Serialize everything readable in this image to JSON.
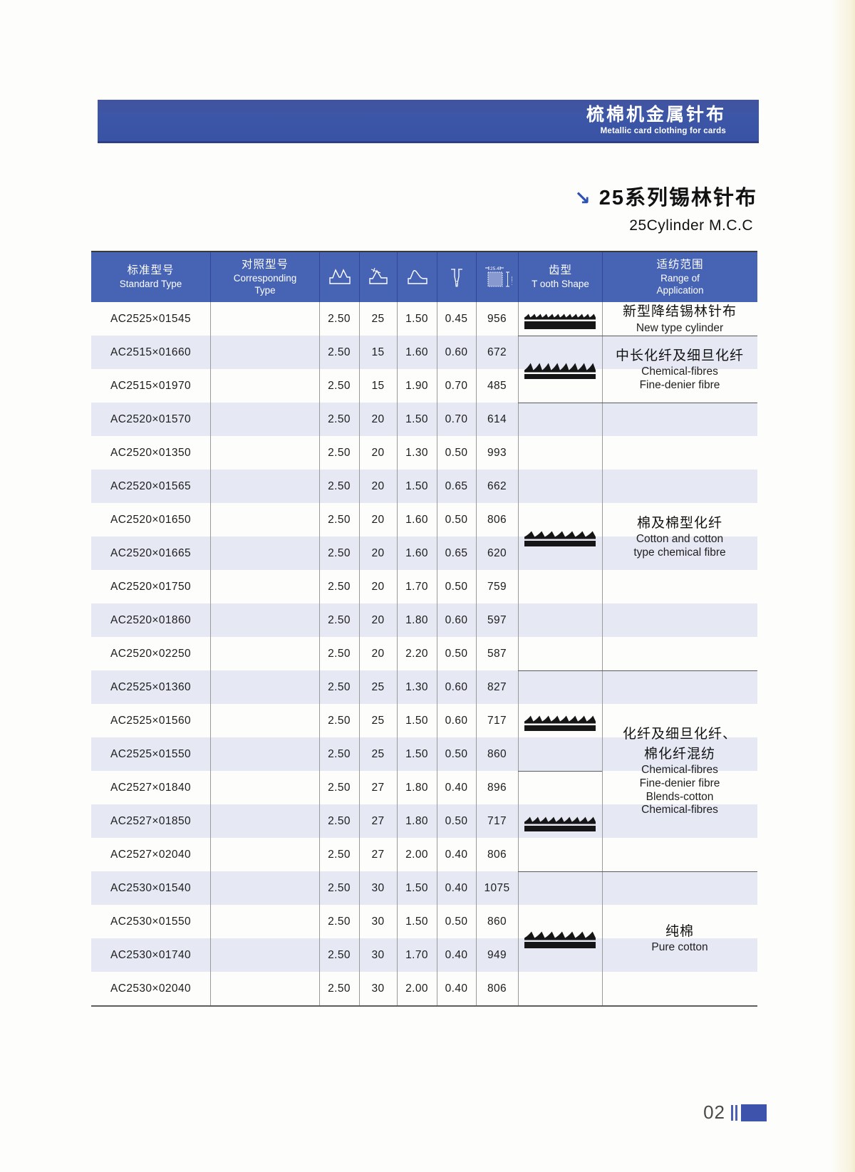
{
  "banner": {
    "title_zh": "梳棉机金属针布",
    "title_en": "Metallic card clothing for cards"
  },
  "section": {
    "arrow": "↘",
    "title_zh": "25系列锡林针布",
    "title_en": "25Cylinder M.C.C"
  },
  "table": {
    "header": {
      "standard": {
        "zh": "标准型号",
        "en": "Standard Type"
      },
      "corresponding": {
        "zh": "对照型号",
        "en1": "Corresponding",
        "en2": "Type"
      },
      "spec_icons": [
        "wire-profile-icon",
        "front-angle-icon",
        "tooth-depth-icon",
        "rib-width-icon",
        "point-density-icon"
      ],
      "density_label": "25.4",
      "tooth_shape": {
        "zh": "齿型",
        "en": "T ooth Shape"
      },
      "application": {
        "zh": "适纺范围",
        "en1": "Range of",
        "en2": "Application"
      }
    },
    "rows": [
      [
        "AC2525×01545",
        "2.50",
        "25",
        "1.50",
        "0.45",
        "956"
      ],
      [
        "AC2515×01660",
        "2.50",
        "15",
        "1.60",
        "0.60",
        "672"
      ],
      [
        "AC2515×01970",
        "2.50",
        "15",
        "1.90",
        "0.70",
        "485"
      ],
      [
        "AC2520×01570",
        "2.50",
        "20",
        "1.50",
        "0.70",
        "614"
      ],
      [
        "AC2520×01350",
        "2.50",
        "20",
        "1.30",
        "0.50",
        "993"
      ],
      [
        "AC2520×01565",
        "2.50",
        "20",
        "1.50",
        "0.65",
        "662"
      ],
      [
        "AC2520×01650",
        "2.50",
        "20",
        "1.60",
        "0.50",
        "806"
      ],
      [
        "AC2520×01665",
        "2.50",
        "20",
        "1.60",
        "0.65",
        "620"
      ],
      [
        "AC2520×01750",
        "2.50",
        "20",
        "1.70",
        "0.50",
        "759"
      ],
      [
        "AC2520×01860",
        "2.50",
        "20",
        "1.80",
        "0.60",
        "597"
      ],
      [
        "AC2520×02250",
        "2.50",
        "20",
        "2.20",
        "0.50",
        "587"
      ],
      [
        "AC2525×01360",
        "2.50",
        "25",
        "1.30",
        "0.60",
        "827"
      ],
      [
        "AC2525×01560",
        "2.50",
        "25",
        "1.50",
        "0.60",
        "717"
      ],
      [
        "AC2525×01550",
        "2.50",
        "25",
        "1.50",
        "0.50",
        "860"
      ],
      [
        "AC2527×01840",
        "2.50",
        "27",
        "1.80",
        "0.40",
        "896"
      ],
      [
        "AC2527×01850",
        "2.50",
        "27",
        "1.80",
        "0.50",
        "717"
      ],
      [
        "AC2527×02040",
        "2.50",
        "27",
        "2.00",
        "0.40",
        "806"
      ],
      [
        "AC2530×01540",
        "2.50",
        "30",
        "1.50",
        "0.40",
        "1075"
      ],
      [
        "AC2530×01550",
        "2.50",
        "30",
        "1.50",
        "0.50",
        "860"
      ],
      [
        "AC2530×01740",
        "2.50",
        "30",
        "1.70",
        "0.40",
        "949"
      ],
      [
        "AC2530×02040",
        "2.50",
        "30",
        "2.00",
        "0.40",
        "806"
      ]
    ],
    "groups": [
      {
        "start": 0,
        "end": 0,
        "app_zh": [
          "新型降结锡林针布"
        ],
        "app_en": [
          "New type cylinder"
        ],
        "teeth": [
          {
            "start": 0,
            "end": 0,
            "n": 12,
            "h": 5,
            "bar": 11
          }
        ]
      },
      {
        "start": 1,
        "end": 2,
        "app_zh": [
          "中长化纤及细旦化纤"
        ],
        "app_en": [
          "Chemical-fibres",
          "Fine-denier fibre"
        ],
        "teeth": [
          {
            "start": 1,
            "end": 2,
            "n": 8,
            "h": 10,
            "bar": 7
          }
        ]
      },
      {
        "start": 3,
        "end": 10,
        "app_zh": [
          "棉及棉型化纤"
        ],
        "app_en": [
          "Cotton and cotton",
          "type chemical fibre"
        ],
        "teeth": [
          {
            "start": 3,
            "end": 10,
            "n": 7,
            "h": 8,
            "bar": 8
          }
        ]
      },
      {
        "start": 11,
        "end": 16,
        "app_zh": [
          "化纤及细旦化纤、",
          "棉化纤混纺"
        ],
        "app_en": [
          "Chemical-fibres",
          "Fine-denier fibre",
          "Blends-cotton",
          "Chemical-fibres"
        ],
        "teeth": [
          {
            "start": 11,
            "end": 13,
            "n": 8,
            "h": 8,
            "bar": 8
          },
          {
            "start": 14,
            "end": 16,
            "n": 9,
            "h": 7,
            "bar": 8
          }
        ]
      },
      {
        "start": 17,
        "end": 20,
        "app_zh": [
          "纯棉"
        ],
        "app_en": [
          "Pure cotton"
        ],
        "teeth": [
          {
            "start": 17,
            "end": 20,
            "n": 7,
            "h": 9,
            "bar": 9
          }
        ]
      }
    ]
  },
  "footer": {
    "page_number": "02"
  }
}
